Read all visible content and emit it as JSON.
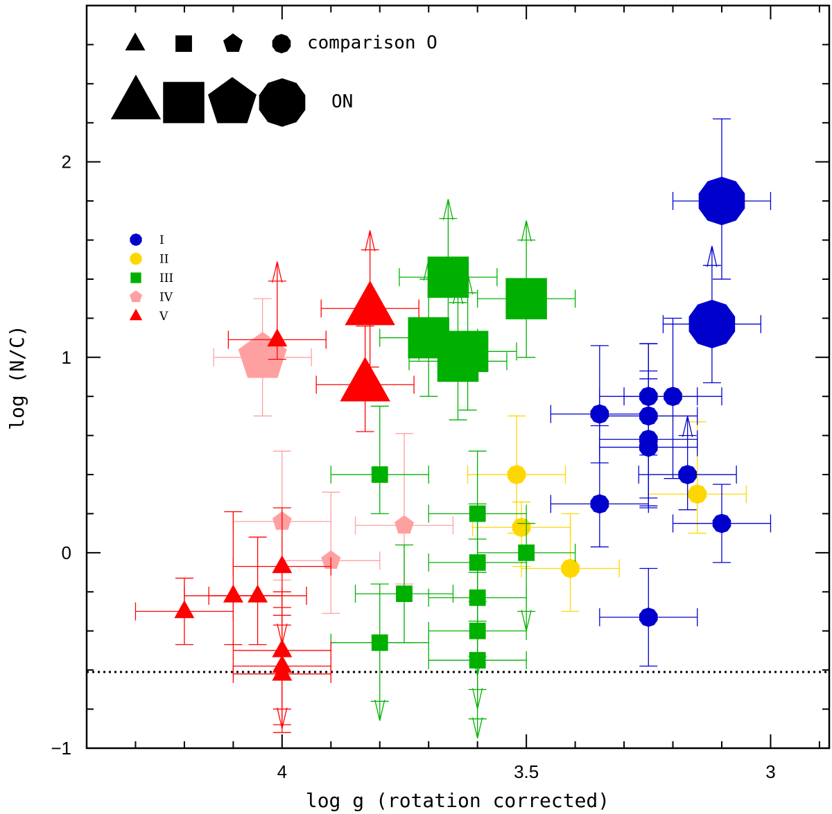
{
  "chart_data": {
    "type": "scatter",
    "title": "",
    "xlabel": "log g (rotation corrected)",
    "ylabel": "log (N/C)",
    "xlim": [
      4.4,
      2.88
    ],
    "ylim": [
      -1,
      2.8
    ],
    "x_ticks": [
      4,
      3.5,
      3
    ],
    "x_tick_labels": [
      "4",
      "3.5",
      "3"
    ],
    "y_ticks": [
      -1,
      0,
      1,
      2
    ],
    "y_tick_labels": [
      "−1",
      "0",
      "1",
      "2"
    ],
    "reference_line_y": -0.61,
    "symbol_legend": {
      "comparison_label": "comparison O",
      "on_label": "ON"
    },
    "class_legend": [
      {
        "label": "I",
        "color": "#0000cc",
        "marker": "circle"
      },
      {
        "label": "II",
        "color": "#ffd700",
        "marker": "circle"
      },
      {
        "label": "III",
        "color": "#00b000",
        "marker": "square"
      },
      {
        "label": "IV",
        "color": "#ffa0a0",
        "marker": "pentagon"
      },
      {
        "label": "V",
        "color": "#ff0000",
        "marker": "triangle"
      }
    ],
    "series": [
      {
        "name": "I",
        "color": "#0000cc",
        "marker": "circle",
        "points": [
          {
            "x": 3.1,
            "y": 1.8,
            "xerr": 0.1,
            "yerr_lo": 0.4,
            "yerr_hi": 0.42,
            "on": true
          },
          {
            "x": 3.12,
            "y": 1.17,
            "xerr": 0.1,
            "yerr_lo": 0.3,
            "yerr_hi": 0.3,
            "lower_limit": true,
            "on": true
          },
          {
            "x": 3.35,
            "y": 0.71,
            "xerr": 0.1,
            "yerr_lo": 0.25,
            "yerr_hi": 0.35
          },
          {
            "x": 3.25,
            "y": 0.8,
            "xerr": 0.1,
            "yerr_lo": 0.3,
            "yerr_hi": 0.27
          },
          {
            "x": 3.2,
            "y": 0.8,
            "xerr": 0.1,
            "yerr_lo": 0.42,
            "yerr_hi": 0.4
          },
          {
            "x": 3.25,
            "y": 0.7,
            "xerr": 0.1,
            "yerr_lo": 0.42,
            "yerr_hi": 0.37
          },
          {
            "x": 3.25,
            "y": 0.58,
            "xerr": 0.1,
            "yerr_lo": 0.35,
            "yerr_hi": 0.35
          },
          {
            "x": 3.25,
            "y": 0.54,
            "xerr": 0.1,
            "yerr_lo": 0.3,
            "yerr_hi": 0.35
          },
          {
            "x": 3.17,
            "y": 0.4,
            "xerr": 0.1,
            "yerr_lo": 0.18,
            "yerr_hi": 0.2,
            "lower_limit": true
          },
          {
            "x": 3.35,
            "y": 0.25,
            "xerr": 0.1,
            "yerr_lo": 0.22,
            "yerr_hi": 0.4
          },
          {
            "x": 3.1,
            "y": 0.15,
            "xerr": 0.1,
            "yerr_lo": 0.2,
            "yerr_hi": 0.2
          },
          {
            "x": 3.25,
            "y": -0.33,
            "xerr": 0.1,
            "yerr_lo": 0.25,
            "yerr_hi": 0.25
          }
        ]
      },
      {
        "name": "II",
        "color": "#ffd700",
        "marker": "circle",
        "points": [
          {
            "x": 3.52,
            "y": 0.4,
            "xerr": 0.1,
            "yerr_lo": 0.3,
            "yerr_hi": 0.3
          },
          {
            "x": 3.51,
            "y": 0.13,
            "xerr": 0.1,
            "yerr_lo": 0.2,
            "yerr_hi": 0.13
          },
          {
            "x": 3.41,
            "y": -0.08,
            "xerr": 0.1,
            "yerr_lo": 0.22,
            "yerr_hi": 0.28
          },
          {
            "x": 3.15,
            "y": 0.3,
            "xerr": 0.1,
            "yerr_lo": 0.2,
            "yerr_hi": 0.37
          }
        ]
      },
      {
        "name": "III",
        "color": "#00b000",
        "marker": "square",
        "points": [
          {
            "x": 3.66,
            "y": 1.41,
            "xerr": 0.1,
            "yerr_lo": 0.3,
            "yerr_hi": 0.3,
            "lower_limit": true,
            "on": true
          },
          {
            "x": 3.5,
            "y": 1.3,
            "xerr": 0.1,
            "yerr_lo": 0.3,
            "yerr_hi": 0.3,
            "lower_limit": true,
            "on": true
          },
          {
            "x": 3.7,
            "y": 1.1,
            "xerr": 0.1,
            "yerr_lo": 0.3,
            "yerr_hi": 0.3,
            "lower_limit": true,
            "on": true
          },
          {
            "x": 3.62,
            "y": 1.03,
            "xerr": 0.1,
            "yerr_lo": 0.3,
            "yerr_hi": 0.3,
            "lower_limit": true,
            "on": true
          },
          {
            "x": 3.64,
            "y": 0.98,
            "xerr": 0.1,
            "yerr_lo": 0.3,
            "yerr_hi": 0.3,
            "lower_limit": true,
            "on": true
          },
          {
            "x": 3.8,
            "y": 0.4,
            "xerr": 0.1,
            "yerr_lo": 0.2,
            "yerr_hi": 0.35
          },
          {
            "x": 3.6,
            "y": 0.2,
            "xerr": 0.1,
            "yerr_lo": 0.3,
            "yerr_hi": 0.32
          },
          {
            "x": 3.5,
            "y": 0.0,
            "xerr": 0.1,
            "yerr_lo": 0.3,
            "yerr_hi": 0.15,
            "upper_limit": true
          },
          {
            "x": 3.6,
            "y": -0.05,
            "xerr": 0.1,
            "yerr_lo": 0.3,
            "yerr_hi": 0.3
          },
          {
            "x": 3.75,
            "y": -0.21,
            "xerr": 0.1,
            "yerr_lo": 0.25,
            "yerr_hi": 0.25
          },
          {
            "x": 3.6,
            "y": -0.23,
            "xerr": 0.1,
            "yerr_lo": 0.3,
            "yerr_hi": 0.3,
            "upper_limit": true
          },
          {
            "x": 3.6,
            "y": -0.4,
            "xerr": 0.1,
            "yerr_lo": 0.3,
            "yerr_hi": 0.3,
            "upper_limit": true
          },
          {
            "x": 3.8,
            "y": -0.46,
            "xerr": 0.1,
            "yerr_lo": 0.3,
            "yerr_hi": 0.3,
            "upper_limit": true
          },
          {
            "x": 3.6,
            "y": -0.55,
            "xerr": 0.1,
            "yerr_lo": 0.3,
            "yerr_hi": 0.3,
            "upper_limit": true
          }
        ]
      },
      {
        "name": "IV",
        "color": "#ffa0a0",
        "marker": "pentagon",
        "points": [
          {
            "x": 4.04,
            "y": 1.0,
            "xerr": 0.1,
            "yerr_lo": 0.3,
            "yerr_hi": 0.3,
            "on": true
          },
          {
            "x": 3.75,
            "y": 0.14,
            "xerr": 0.1,
            "yerr_lo": 0.3,
            "yerr_hi": 0.47
          },
          {
            "x": 4.0,
            "y": 0.16,
            "xerr": 0.1,
            "yerr_lo": 0.3,
            "yerr_hi": 0.36
          },
          {
            "x": 3.9,
            "y": -0.04,
            "xerr": 0.1,
            "yerr_lo": 0.27,
            "yerr_hi": 0.35
          }
        ]
      },
      {
        "name": "V",
        "color": "#ff0000",
        "marker": "triangle",
        "points": [
          {
            "x": 3.82,
            "y": 1.25,
            "xerr": 0.1,
            "yerr_lo": 0.3,
            "yerr_hi": 0.3,
            "lower_limit": true,
            "on": true
          },
          {
            "x": 3.83,
            "y": 0.86,
            "xerr": 0.1,
            "yerr_lo": 0.24,
            "yerr_hi": 0.3,
            "on": true
          },
          {
            "x": 4.01,
            "y": 1.09,
            "xerr": 0.1,
            "yerr_lo": 0.1,
            "yerr_hi": 0.3,
            "lower_limit": true
          },
          {
            "x": 4.2,
            "y": -0.3,
            "xerr": 0.1,
            "yerr_lo": 0.17,
            "yerr_hi": 0.17
          },
          {
            "x": 4.1,
            "y": -0.22,
            "xerr": 0.1,
            "yerr_lo": 0.25,
            "yerr_hi": 0.43
          },
          {
            "x": 4.05,
            "y": -0.22,
            "xerr": 0.1,
            "yerr_lo": 0.25,
            "yerr_hi": 0.3
          },
          {
            "x": 4.0,
            "y": -0.07,
            "xerr": 0.1,
            "yerr_lo": 0.3,
            "yerr_hi": 0.3,
            "upper_limit": true
          },
          {
            "x": 4.0,
            "y": -0.5,
            "xerr": 0.1,
            "yerr_lo": 0.3,
            "yerr_hi": 0.3,
            "upper_limit": true
          },
          {
            "x": 4.0,
            "y": -0.58,
            "xerr": 0.1,
            "yerr_lo": 0.3,
            "yerr_hi": 0.3
          },
          {
            "x": 4.0,
            "y": -0.62,
            "xerr": 0.1,
            "yerr_lo": 0.3,
            "yerr_hi": 0.3
          }
        ]
      }
    ]
  }
}
